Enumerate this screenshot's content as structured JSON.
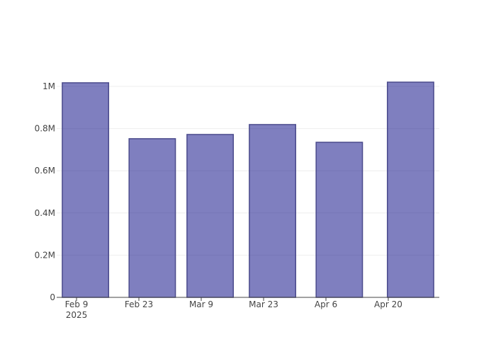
{
  "chart_data": {
    "type": "bar",
    "x": [
      "2025-02-11",
      "2025-02-26",
      "2025-03-11",
      "2025-03-25",
      "2025-04-09",
      "2025-04-25"
    ],
    "values": [
      1017000,
      752000,
      772000,
      819000,
      735000,
      1020000
    ],
    "color": "rgba(0,0,128,0.5)",
    "line_color": "#4b4b8c",
    "xlim": [
      "2025-02-04T13:00",
      "2025-05-01T11:00"
    ],
    "xticks": [
      {
        "value": "2025-02-09",
        "label": "Feb 9\n2025"
      },
      {
        "value": "2025-02-23",
        "label": "Feb 23"
      },
      {
        "value": "2025-03-09",
        "label": "Mar 9"
      },
      {
        "value": "2025-03-23",
        "label": "Mar 23"
      },
      {
        "value": "2025-04-06",
        "label": "Apr 6"
      },
      {
        "value": "2025-04-20",
        "label": "Apr 20"
      }
    ],
    "ylim": [
      0,
      1073826
    ],
    "yticks": [
      0,
      {
        "value": 200000,
        "label": "0.2M"
      },
      {
        "value": 400000,
        "label": "0.4M"
      },
      {
        "value": 600000,
        "label": "0.6M"
      },
      {
        "value": 800000,
        "label": "0.8M"
      },
      {
        "value": 1000000,
        "label": "1M"
      }
    ],
    "grid": true
  }
}
